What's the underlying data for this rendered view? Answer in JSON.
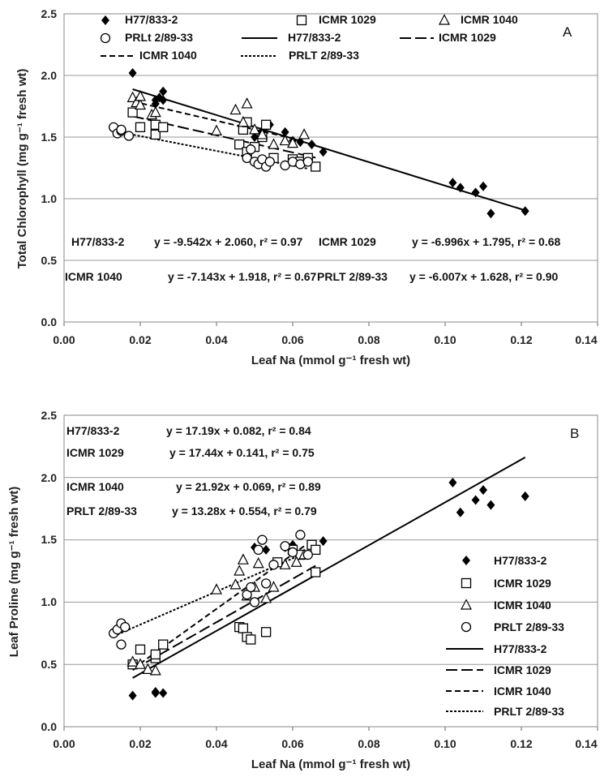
{
  "chart_data": [
    {
      "type": "scatter",
      "panel_label": "A",
      "xlabel": "Leaf Na (mmol g⁻¹ fresh wt)",
      "ylabel": "Total Chlorophyll (mg g⁻¹ fresh wt)",
      "xlim": [
        0,
        0.14
      ],
      "ylim": [
        0,
        2.5
      ],
      "x_ticks": [
        "0.00",
        "0.02",
        "0.04",
        "0.06",
        "0.08",
        "0.10",
        "0.12",
        "0.14"
      ],
      "y_ticks": [
        "0.0",
        "0.5",
        "1.0",
        "1.5",
        "2.0",
        "2.5"
      ],
      "grid": "horizontal",
      "legend": [
        {
          "label": "H77/833-2",
          "kind": "diamond"
        },
        {
          "label": "ICMR 1029",
          "kind": "square"
        },
        {
          "label": "ICMR 1040",
          "kind": "triangle"
        },
        {
          "label": "PRLt 2/89-33",
          "kind": "circle"
        },
        {
          "label": "H77/833-2",
          "kind": "solid"
        },
        {
          "label": "ICMR 1029",
          "kind": "longdash"
        },
        {
          "label": "ICMR 1040",
          "kind": "dash"
        },
        {
          "label": "PRLT 2/89-33",
          "kind": "shortdash"
        }
      ],
      "equations": [
        {
          "genotype": "H77/833-2",
          "text": "y = -9.542x + 2.060, r² = 0.97"
        },
        {
          "genotype": "ICMR 1029",
          "text": "y = -6.996x + 1.795, r² = 0.68"
        },
        {
          "genotype": "ICMR 1040",
          "text": "y = -7.143x + 1.918, r² = 0.67"
        },
        {
          "genotype": "PRLT 2/89-33",
          "text": "y = -6.007x + 1.628, r² = 0.90"
        }
      ],
      "series": [
        {
          "marker": "diamond",
          "x": [
            0.018,
            0.024,
            0.025,
            0.026,
            0.026,
            0.024,
            0.05,
            0.052,
            0.054,
            0.058,
            0.06,
            0.062,
            0.065,
            0.068,
            0.102,
            0.104,
            0.108,
            0.11,
            0.112,
            0.121
          ],
          "y": [
            2.02,
            1.8,
            1.82,
            1.87,
            1.8,
            1.77,
            1.5,
            1.55,
            1.6,
            1.54,
            1.47,
            1.46,
            1.44,
            1.38,
            1.13,
            1.09,
            1.05,
            1.1,
            0.88,
            0.9
          ]
        },
        {
          "marker": "square",
          "x": [
            0.018,
            0.02,
            0.024,
            0.024,
            0.026,
            0.046,
            0.047,
            0.048,
            0.05,
            0.053,
            0.055,
            0.06,
            0.062,
            0.064,
            0.066,
            0.048,
            0.052
          ],
          "y": [
            1.7,
            1.58,
            1.52,
            1.6,
            1.58,
            1.44,
            1.56,
            1.62,
            1.42,
            1.6,
            1.33,
            1.32,
            1.3,
            1.33,
            1.26,
            1.38,
            1.5
          ]
        },
        {
          "marker": "triangle",
          "x": [
            0.018,
            0.019,
            0.02,
            0.023,
            0.024,
            0.04,
            0.045,
            0.047,
            0.048,
            0.05,
            0.052,
            0.055,
            0.058,
            0.06,
            0.063,
            0.02
          ],
          "y": [
            1.82,
            1.78,
            1.76,
            1.68,
            1.7,
            1.55,
            1.72,
            1.62,
            1.77,
            1.56,
            1.52,
            1.44,
            1.47,
            1.45,
            1.52,
            1.83
          ]
        },
        {
          "marker": "circle",
          "x": [
            0.013,
            0.014,
            0.015,
            0.015,
            0.017,
            0.048,
            0.049,
            0.05,
            0.051,
            0.052,
            0.053,
            0.054,
            0.058,
            0.06,
            0.062,
            0.064
          ],
          "y": [
            1.58,
            1.53,
            1.55,
            1.56,
            1.51,
            1.33,
            1.4,
            1.3,
            1.28,
            1.32,
            1.26,
            1.3,
            1.27,
            1.3,
            1.28,
            1.3
          ]
        }
      ],
      "fits": [
        {
          "style": "solid",
          "slope": -9.542,
          "intercept": 2.06,
          "x_range": [
            0.018,
            0.121
          ]
        },
        {
          "style": "longdash",
          "slope": -6.996,
          "intercept": 1.795,
          "x_range": [
            0.018,
            0.066
          ]
        },
        {
          "style": "dash",
          "slope": -7.143,
          "intercept": 1.918,
          "x_range": [
            0.018,
            0.063
          ]
        },
        {
          "style": "shortdash",
          "slope": -6.007,
          "intercept": 1.628,
          "x_range": [
            0.013,
            0.064
          ]
        }
      ]
    },
    {
      "type": "scatter",
      "panel_label": "B",
      "xlabel": "Leaf Na (mmol g⁻¹ fresh wt)",
      "ylabel": "Leaf Proline (mg g⁻¹ fresh wt)",
      "xlim": [
        0,
        0.14
      ],
      "ylim": [
        0,
        2.5
      ],
      "x_ticks": [
        "0.00",
        "0.02",
        "0.04",
        "0.06",
        "0.08",
        "0.10",
        "0.12",
        "0.14"
      ],
      "y_ticks": [
        "0.0",
        "0.5",
        "1.0",
        "1.5",
        "2.0",
        "2.5"
      ],
      "grid": "horizontal",
      "legend": [
        {
          "label": "H77/833-2",
          "kind": "diamond"
        },
        {
          "label": "ICMR 1029",
          "kind": "square"
        },
        {
          "label": "ICMR 1040",
          "kind": "triangle"
        },
        {
          "label": "PRLT 2/89-33",
          "kind": "circle"
        },
        {
          "label": "H77/833-2",
          "kind": "solid"
        },
        {
          "label": "ICMR 1029",
          "kind": "longdash"
        },
        {
          "label": "ICMR 1040",
          "kind": "dash"
        },
        {
          "label": "PRLT 2/89-33",
          "kind": "shortdash"
        }
      ],
      "equations": [
        {
          "genotype": "H77/833-2",
          "text": "y = 17.19x + 0.082, r² = 0.84"
        },
        {
          "genotype": "ICMR 1029",
          "text": "y = 17.44x + 0.141, r² = 0.75"
        },
        {
          "genotype": "ICMR 1040",
          "text": "y = 21.92x + 0.069, r² = 0.89"
        },
        {
          "genotype": "PRLT 2/89-33",
          "text": "y = 13.28x + 0.554, r² = 0.79"
        }
      ],
      "series": [
        {
          "marker": "diamond",
          "x": [
            0.018,
            0.024,
            0.024,
            0.026,
            0.05,
            0.053,
            0.058,
            0.06,
            0.064,
            0.068,
            0.102,
            0.104,
            0.108,
            0.11,
            0.112,
            0.121
          ],
          "y": [
            0.25,
            0.27,
            0.28,
            0.27,
            1.44,
            1.42,
            1.44,
            1.46,
            1.38,
            1.49,
            1.96,
            1.72,
            1.82,
            1.9,
            1.78,
            1.85
          ]
        },
        {
          "marker": "square",
          "x": [
            0.018,
            0.02,
            0.024,
            0.024,
            0.026,
            0.046,
            0.047,
            0.048,
            0.049,
            0.053,
            0.056,
            0.06,
            0.062,
            0.065,
            0.066,
            0.066
          ],
          "y": [
            0.5,
            0.62,
            0.55,
            0.58,
            0.66,
            0.8,
            0.79,
            0.72,
            0.7,
            0.76,
            1.32,
            1.42,
            1.38,
            1.46,
            1.24,
            1.42
          ]
        },
        {
          "marker": "triangle",
          "x": [
            0.018,
            0.02,
            0.022,
            0.024,
            0.04,
            0.045,
            0.046,
            0.047,
            0.048,
            0.05,
            0.051,
            0.053,
            0.055,
            0.058,
            0.061,
            0.063
          ],
          "y": [
            0.52,
            0.5,
            0.46,
            0.45,
            1.1,
            1.14,
            1.25,
            1.34,
            1.05,
            1.12,
            1.31,
            1.03,
            1.12,
            1.3,
            1.32,
            1.38
          ]
        },
        {
          "marker": "circle",
          "x": [
            0.013,
            0.014,
            0.015,
            0.015,
            0.016,
            0.048,
            0.049,
            0.05,
            0.051,
            0.052,
            0.053,
            0.055,
            0.058,
            0.06,
            0.062,
            0.064
          ],
          "y": [
            0.75,
            0.78,
            0.83,
            0.66,
            0.8,
            1.06,
            1.12,
            1.0,
            1.42,
            1.5,
            1.15,
            1.3,
            1.45,
            1.4,
            1.54,
            1.38
          ]
        }
      ],
      "fits": [
        {
          "style": "solid",
          "slope": 17.19,
          "intercept": 0.082,
          "x_range": [
            0.018,
            0.121
          ]
        },
        {
          "style": "longdash",
          "slope": 17.44,
          "intercept": 0.141,
          "x_range": [
            0.018,
            0.066
          ]
        },
        {
          "style": "dash",
          "slope": 21.92,
          "intercept": 0.069,
          "x_range": [
            0.018,
            0.063
          ]
        },
        {
          "style": "shortdash",
          "slope": 13.28,
          "intercept": 0.554,
          "x_range": [
            0.013,
            0.064
          ]
        }
      ]
    }
  ]
}
